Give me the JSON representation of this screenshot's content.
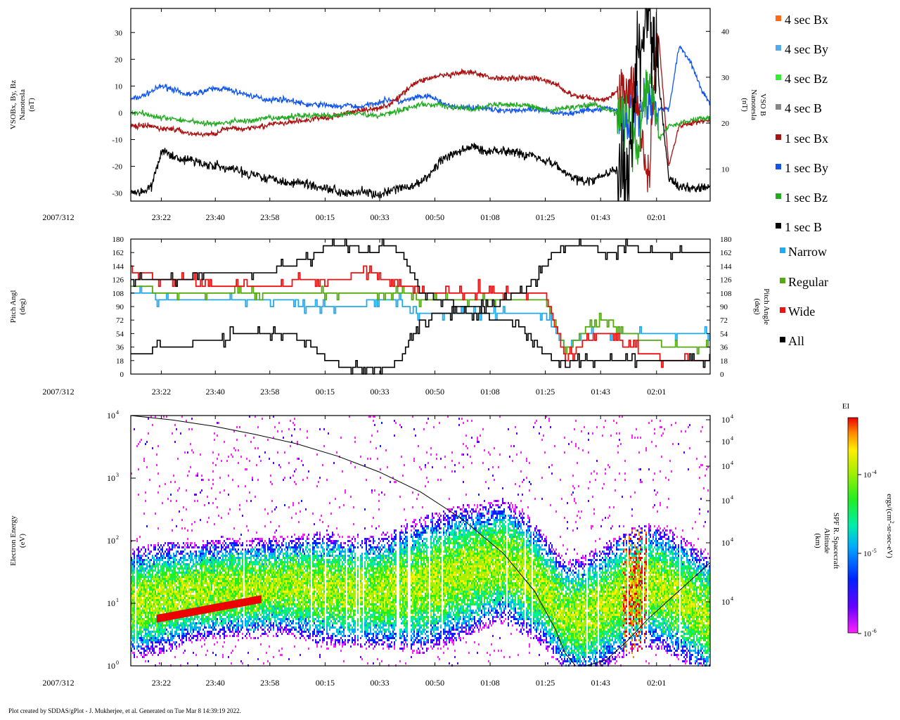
{
  "footer": "Plot created by SDDAS/gPlot - J. Mukherjee, et al.  Generated on Tue Mar 8 14:39:19 2022.",
  "colors": {
    "bx4": "#ff6a1a",
    "by4": "#55aaee",
    "bz4": "#33ee33",
    "b4": "#888888",
    "bx1": "#aa1111",
    "by1": "#1155ee",
    "bz1": "#22aa22",
    "b1": "#000000",
    "narrow": "#22aaee",
    "regular": "#55aa11",
    "wide": "#ee1111",
    "all": "#000000"
  },
  "chart_data": [
    {
      "type": "line",
      "panel": "magnetic-field",
      "date_label": "2007/312",
      "x_ticks": [
        "23:22",
        "23:40",
        "23:58",
        "00:15",
        "00:33",
        "00:50",
        "01:08",
        "01:25",
        "01:43",
        "02:01"
      ],
      "ylabel_left": [
        "VSOBx, By, Bz",
        "Nanotesla",
        "(nT)"
      ],
      "ylabel_right": [
        "VSO B",
        "Nanotesla",
        "(nT)"
      ],
      "ylim_left": [
        -33,
        39
      ],
      "ylim_right": [
        3,
        45
      ],
      "yticks_left": [
        "30",
        "20",
        "10",
        "0",
        "-10",
        "-20",
        "-30"
      ],
      "yticks_right": [
        "40",
        "30",
        "20",
        "10"
      ],
      "legend": [
        "4 sec Bx",
        "4 sec By",
        "4 sec Bz",
        "4 sec B",
        "1 sec Bx",
        "1 sec By",
        "1 sec Bz",
        "1 sec B"
      ],
      "series": [
        {
          "name": "1 sec By",
          "axis": "left",
          "x": [
            0,
            10,
            20,
            30,
            40,
            50,
            60,
            70,
            80,
            90,
            100,
            110,
            120,
            130,
            140,
            150,
            160,
            170,
            180,
            190,
            200,
            210,
            220,
            230,
            240,
            250,
            260,
            270,
            280,
            290,
            300,
            310,
            320,
            330,
            340,
            350,
            360,
            370,
            380,
            390,
            400,
            410,
            420,
            430,
            440,
            450,
            460,
            470,
            480,
            490,
            500,
            510,
            520,
            530,
            540,
            550,
            560
          ],
          "values": [
            5,
            6,
            8,
            10,
            9,
            7,
            7,
            8,
            9,
            9,
            8,
            7,
            6,
            5,
            5,
            5,
            4,
            3,
            3,
            3,
            2,
            3,
            2,
            3,
            4,
            5,
            4,
            5,
            6,
            6,
            4,
            2,
            2,
            2,
            2,
            1,
            1,
            1,
            1,
            1,
            1,
            0,
            0,
            0,
            1,
            1,
            2,
            1,
            -2,
            3,
            3,
            2,
            1,
            25,
            20,
            10,
            3
          ]
        },
        {
          "name": "1 sec Bx",
          "axis": "left",
          "x": [
            0,
            10,
            20,
            30,
            40,
            50,
            60,
            70,
            80,
            90,
            100,
            110,
            120,
            130,
            140,
            150,
            160,
            170,
            180,
            190,
            200,
            210,
            220,
            230,
            240,
            250,
            260,
            270,
            280,
            290,
            300,
            310,
            320,
            330,
            340,
            350,
            360,
            370,
            380,
            390,
            400,
            410,
            420,
            430,
            440,
            450,
            460,
            470,
            480,
            490,
            500,
            510,
            520,
            530,
            540,
            550,
            560
          ],
          "values": [
            -5,
            -5,
            -5,
            -6,
            -6,
            -7,
            -8,
            -8,
            -8,
            -6,
            -6,
            -6,
            -5,
            -5,
            -4,
            -4,
            -3,
            -3,
            -2,
            -2,
            -1,
            0,
            1,
            1,
            2,
            3,
            6,
            10,
            12,
            13,
            14,
            14,
            15,
            15,
            14,
            13,
            13,
            13,
            13,
            13,
            12,
            11,
            8,
            6,
            6,
            5,
            5,
            8,
            10,
            5,
            -25,
            30,
            -20,
            -5,
            -4,
            -3,
            -3
          ]
        },
        {
          "name": "1 sec Bz",
          "axis": "left",
          "x": [
            0,
            10,
            20,
            30,
            40,
            50,
            60,
            70,
            80,
            90,
            100,
            110,
            120,
            130,
            140,
            150,
            160,
            170,
            180,
            190,
            200,
            210,
            220,
            230,
            240,
            250,
            260,
            270,
            280,
            290,
            300,
            310,
            320,
            330,
            340,
            350,
            360,
            370,
            380,
            390,
            400,
            410,
            420,
            430,
            440,
            450,
            460,
            470,
            480,
            490,
            500,
            510,
            520,
            530,
            540,
            550,
            560
          ],
          "values": [
            0,
            0,
            -1,
            -2,
            -2,
            -3,
            -3,
            -4,
            -4,
            -4,
            -3,
            -3,
            -3,
            -2,
            -2,
            -2,
            -1,
            -1,
            -1,
            -1,
            -1,
            0,
            0,
            -1,
            -1,
            0,
            1,
            2,
            3,
            3,
            3,
            2,
            2,
            1,
            2,
            3,
            3,
            3,
            3,
            2,
            1,
            1,
            2,
            2,
            3,
            3,
            1,
            0,
            -2,
            -15,
            15,
            -10,
            -5,
            -4,
            -3,
            -2,
            -2
          ]
        },
        {
          "name": "1 sec B",
          "axis": "right",
          "x": [
            0,
            10,
            20,
            30,
            40,
            50,
            60,
            70,
            80,
            90,
            100,
            110,
            120,
            130,
            140,
            150,
            160,
            170,
            180,
            190,
            200,
            210,
            220,
            230,
            240,
            250,
            260,
            270,
            280,
            290,
            300,
            310,
            320,
            330,
            340,
            350,
            360,
            370,
            380,
            390,
            400,
            410,
            420,
            430,
            440,
            450,
            460,
            470,
            480,
            490,
            500,
            510,
            520,
            530,
            540,
            550,
            560
          ],
          "values": [
            5,
            5,
            6,
            14,
            13,
            12,
            12,
            11,
            11,
            10,
            10,
            9,
            9,
            8,
            8,
            7,
            7,
            7,
            6,
            6,
            5,
            5,
            5,
            5,
            4,
            5,
            6,
            6,
            7,
            9,
            12,
            13,
            14,
            15,
            14,
            14,
            14,
            14,
            13,
            13,
            12,
            11,
            9,
            8,
            7,
            8,
            9,
            10,
            5,
            35,
            45,
            30,
            8,
            6,
            6,
            6,
            6
          ]
        }
      ]
    },
    {
      "type": "line",
      "panel": "pitch-angle",
      "date_label": "2007/312",
      "x_ticks": [
        "23:22",
        "23:40",
        "23:58",
        "00:15",
        "00:33",
        "00:50",
        "01:08",
        "01:25",
        "01:43",
        "02:01"
      ],
      "ylabel_left": [
        "Pitch Angl",
        "(deg)"
      ],
      "ylabel_right": [
        "Pitch Angle",
        "(deg)"
      ],
      "ylim": [
        0,
        180
      ],
      "yticks": [
        "180",
        "162",
        "144",
        "126",
        "108",
        "90",
        "72",
        "54",
        "36",
        "18",
        "0"
      ],
      "legend": [
        "Narrow",
        "Regular",
        "Wide",
        "All"
      ],
      "series": [
        {
          "name": "All max",
          "x": [
            0,
            40,
            80,
            110,
            130,
            150,
            170,
            190,
            210,
            230,
            250,
            260,
            270,
            280,
            300,
            320,
            340,
            350,
            360,
            380,
            400,
            410,
            420,
            440,
            460,
            480,
            500,
            520,
            540,
            560
          ],
          "values": [
            126,
            126,
            135,
            135,
            135,
            144,
            153,
            171,
            171,
            162,
            171,
            162,
            144,
            108,
            100,
            90,
            90,
            90,
            100,
            110,
            144,
            162,
            171,
            171,
            162,
            171,
            162,
            162,
            162,
            162
          ]
        },
        {
          "name": "All min",
          "x": [
            0,
            40,
            80,
            110,
            130,
            150,
            170,
            190,
            210,
            230,
            250,
            260,
            270,
            280,
            300,
            320,
            340,
            350,
            360,
            380,
            400,
            410,
            420,
            440,
            460,
            480,
            500,
            520,
            540,
            560
          ],
          "values": [
            27,
            36,
            45,
            54,
            54,
            54,
            45,
            18,
            9,
            9,
            9,
            18,
            45,
            72,
            80,
            81,
            81,
            72,
            72,
            60,
            27,
            18,
            18,
            18,
            18,
            18,
            18,
            18,
            18,
            18
          ]
        },
        {
          "name": "Narrow",
          "x": [
            0,
            40,
            80,
            110,
            130,
            150,
            170,
            190,
            210,
            230,
            250,
            260,
            270,
            280,
            400,
            420,
            440,
            460,
            480,
            500,
            520,
            540,
            560
          ],
          "values": [
            108,
            100,
            95,
            95,
            95,
            100,
            90,
            90,
            90,
            95,
            95,
            95,
            90,
            80,
            80,
            36,
            54,
            54,
            54,
            54,
            54,
            54,
            54
          ]
        },
        {
          "name": "Regular",
          "x": [
            0,
            40,
            80,
            110,
            130,
            150,
            170,
            190,
            210,
            230,
            250,
            260,
            270,
            280,
            400,
            420,
            440,
            460,
            480,
            500,
            520,
            540,
            560
          ],
          "values": [
            115,
            110,
            110,
            108,
            108,
            108,
            108,
            110,
            110,
            110,
            110,
            108,
            108,
            100,
            100,
            30,
            60,
            72,
            54,
            45,
            36,
            36,
            36
          ]
        },
        {
          "name": "Wide",
          "x": [
            0,
            40,
            80,
            110,
            130,
            150,
            170,
            190,
            210,
            230,
            250,
            260,
            270,
            280,
            400,
            420,
            440,
            460,
            480,
            500,
            520,
            540,
            560
          ],
          "values": [
            135,
            126,
            118,
            118,
            118,
            120,
            126,
            126,
            130,
            135,
            126,
            120,
            118,
            110,
            110,
            20,
            45,
            54,
            36,
            27,
            18,
            18,
            18
          ]
        }
      ]
    },
    {
      "type": "heatmap",
      "panel": "electron-energy-spectrogram",
      "date_label": "2007/312",
      "x_ticks": [
        "23:22",
        "23:40",
        "23:58",
        "00:15",
        "00:33",
        "00:50",
        "01:08",
        "01:25",
        "01:43",
        "02:01"
      ],
      "ylabel_left": [
        "Electron Energy",
        "(eV)"
      ],
      "ylabel_right": [
        "SPF R. Spacecraft",
        "Altitude",
        "(km)"
      ],
      "yscale": "log",
      "ylim": [
        1,
        10000
      ],
      "yticks_left": [
        {
          "base": "10",
          "exp": "4"
        },
        {
          "base": "10",
          "exp": "3"
        },
        {
          "base": "10",
          "exp": "2"
        },
        {
          "base": "10",
          "exp": "1"
        },
        {
          "base": "10",
          "exp": "0"
        }
      ],
      "yticks_right": [
        {
          "base": "10",
          "exp": "4"
        },
        {
          "base": "10",
          "exp": "4"
        },
        {
          "base": "10",
          "exp": "4"
        },
        {
          "base": "10",
          "exp": "4"
        },
        {
          "base": "10",
          "exp": "4"
        },
        {
          "base": "10",
          "exp": "4"
        }
      ],
      "colorbar": {
        "title": "EI",
        "label": "ergs/(cm^2-sr-sec-eV)",
        "label_parts": [
          "ergs/(cm",
          "2",
          "-sr-sec-eV)"
        ],
        "ticks": [
          {
            "base": "10",
            "exp": "-4"
          },
          {
            "base": "10",
            "exp": "-5"
          },
          {
            "base": "10",
            "exp": "-6"
          }
        ]
      },
      "altitude_curve": {
        "x": [
          0,
          40,
          80,
          120,
          160,
          200,
          240,
          280,
          320,
          360,
          390,
          410,
          420,
          430,
          440,
          460,
          480,
          500,
          520,
          540,
          560
        ],
        "log_value": [
          4.0,
          3.93,
          3.83,
          3.7,
          3.55,
          3.35,
          3.1,
          2.78,
          2.35,
          1.8,
          1.2,
          0.6,
          0.2,
          0.0,
          0.0,
          0.1,
          0.4,
          0.75,
          1.05,
          1.35,
          1.65
        ]
      },
      "band_profile": {
        "x": [
          0,
          30,
          60,
          90,
          120,
          150,
          180,
          210,
          240,
          260,
          280,
          300,
          320,
          340,
          360,
          380,
          400,
          420,
          440,
          460,
          480,
          500,
          520,
          540,
          560
        ],
        "center_log": [
          1.0,
          1.1,
          1.2,
          1.25,
          1.25,
          1.3,
          1.25,
          1.2,
          1.2,
          1.25,
          1.3,
          1.4,
          1.5,
          1.6,
          1.7,
          1.5,
          1.2,
          0.8,
          0.8,
          1.0,
          1.2,
          1.3,
          1.2,
          1.0,
          0.8
        ],
        "spread_log": [
          0.9,
          0.9,
          0.8,
          0.8,
          0.8,
          0.8,
          0.9,
          0.9,
          0.9,
          1.0,
          1.1,
          1.1,
          1.1,
          1.0,
          1.0,
          1.0,
          0.9,
          0.9,
          1.0,
          1.0,
          1.0,
          1.0,
          1.0,
          1.0,
          1.0
        ]
      },
      "hot_segment": {
        "x": [
          25,
          125
        ],
        "log_value": [
          0.75,
          1.06
        ]
      }
    }
  ]
}
